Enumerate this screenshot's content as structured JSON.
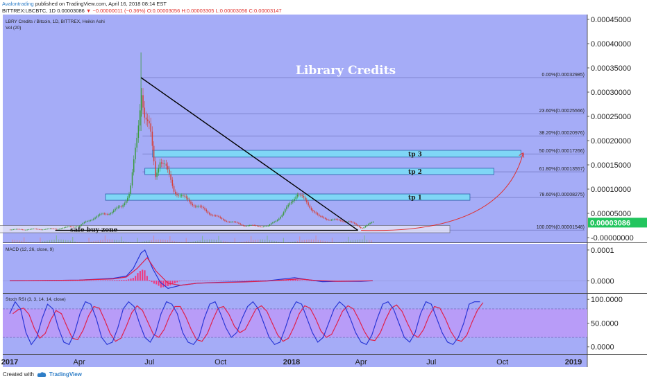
{
  "header": {
    "author": "Avalontrading",
    "published": "published on TradingView.com, April 16, 2018 08:14 EST",
    "symbol": "BITTREX:LBCBTC, 1D",
    "price": "0.00003086",
    "change": "−0.00000011 (−0.36%)",
    "ohlc": "O:0.00003056 H:0.00003305 L:0.00003056 C:0.00003147"
  },
  "footer": {
    "created_with": "Created with",
    "brand": "TradingView"
  },
  "colors": {
    "pane_bg": "#a5acf7",
    "candle_up": "#3a9a3c",
    "candle_down": "#d5403a",
    "macd_line": "#2433d6",
    "signal_line": "#e0204a",
    "hist": "#f2357b",
    "stoch_k": "#2a37d6",
    "stoch_d": "#e0204a",
    "stoch_band": "#b89cf8",
    "zone_fill": "#7fd6f6",
    "zone_border": "#2b5fa8",
    "curve": "#e03030",
    "price_badge": "#22c55e"
  },
  "chart_data": [
    {
      "type": "candlestick",
      "title": "LBRY Credits / Bitcoin, 1D, BITTREX, Heikin Ashi",
      "subtitle": "Vol (20)",
      "annotation": "Library Credits",
      "x_ticks": [
        "2017",
        "Apr",
        "Jul",
        "Oct",
        "2018",
        "Apr",
        "Jul",
        "Oct",
        "2019"
      ],
      "y_ticks": [
        "0.00045000",
        "0.00040000",
        "0.00035000",
        "0.00030000",
        "0.00025000",
        "0.00020000",
        "0.00015000",
        "0.00010000",
        "0.00005000",
        "-0.00000000"
      ],
      "y_ticks_values": [
        0.00045,
        0.0004,
        0.00035,
        0.0003,
        0.00025,
        0.0002,
        0.00015,
        0.0001,
        5e-05,
        0.0
      ],
      "ylim": [
        -1e-05,
        0.00046
      ],
      "last_price": "0.00003086",
      "price_path": {
        "dates": [
          "2017-01-01",
          "2017-02-01",
          "2017-03-01",
          "2017-04-01",
          "2017-04-20",
          "2017-05-10",
          "2017-05-25",
          "2017-06-05",
          "2017-06-15",
          "2017-06-20",
          "2017-06-24",
          "2017-07-01",
          "2017-07-08",
          "2017-07-14",
          "2017-07-20",
          "2017-08-01",
          "2017-08-15",
          "2017-09-01",
          "2017-10-01",
          "2017-11-01",
          "2017-12-01",
          "2017-12-20",
          "2018-01-07",
          "2018-01-20",
          "2018-02-05",
          "2018-03-01",
          "2018-03-15",
          "2018-04-01",
          "2018-04-16"
        ],
        "values": [
          1.65e-05,
          1.72e-05,
          1.8e-05,
          2.45e-05,
          4.2e-05,
          5.2e-05,
          6.3e-05,
          9.5e-05,
          0.00021,
          0.00031,
          0.00026,
          0.00022,
          0.000125,
          0.000165,
          0.00015,
          9.8e-05,
          8e-05,
          6.4e-05,
          3.8e-05,
          2.5e-05,
          2.3e-05,
          4.8e-05,
          9.2e-05,
          7.2e-05,
          4.2e-05,
          3.5e-05,
          3.4e-05,
          2e-05,
          3.15e-05
        ]
      },
      "fib_levels": [
        {
          "label": "0.00%(0.00032985)",
          "value": 0.00032985
        },
        {
          "label": "23.60%(0.00025566)",
          "value": 0.00025566
        },
        {
          "label": "38.20%(0.00020976)",
          "value": 0.00020976
        },
        {
          "label": "50.00%(0.00017266)",
          "value": 0.00017266
        },
        {
          "label": "61.80%(0.00013557)",
          "value": 0.00013557
        },
        {
          "label": "78.60%(0.00008275)",
          "value": 8.275e-05
        },
        {
          "label": "100.00%(0.00001548)",
          "value": 1.548e-05
        }
      ],
      "zones": [
        {
          "label": "tp 3",
          "start": "2017-07-05",
          "end": "2018-10-25",
          "low": 0.000166,
          "high": 0.00018
        },
        {
          "label": "tp 2",
          "start": "2017-06-25",
          "end": "2018-09-20",
          "low": 0.00013,
          "high": 0.000143
        },
        {
          "label": "tp 1",
          "start": "2017-05-05",
          "end": "2018-08-20",
          "low": 7.7e-05,
          "high": 9e-05
        },
        {
          "label": "safe buy zone",
          "start": "2016-12-15",
          "end": "2018-07-25",
          "low": 1e-05,
          "high": 2.5e-05
        }
      ],
      "trendline": {
        "start": [
          "2017-06-20",
          0.00033
        ],
        "end": [
          "2018-03-28",
          1.5e-05
        ]
      },
      "support_line": {
        "start": [
          "2017-03-01",
          1.5e-05
        ],
        "end": [
          "2018-03-28",
          1.5e-05
        ]
      },
      "target_curve": {
        "start": [
          "2018-04-01",
          1.5e-05
        ],
        "end": [
          "2018-10-28",
          0.000175
        ]
      }
    },
    {
      "type": "line",
      "title": "MACD (12, 26, close, 9)",
      "y_ticks": [
        "0.0001",
        "0.0000"
      ],
      "y_ticks_values": [
        0.0001,
        0.0
      ],
      "ylim": [
        -4e-05,
        0.00012
      ],
      "series": [
        {
          "key": "macd",
          "dates": [
            "2017-01-01",
            "2017-04-01",
            "2017-05-15",
            "2017-06-01",
            "2017-06-10",
            "2017-06-20",
            "2017-06-25",
            "2017-07-05",
            "2017-07-15",
            "2017-07-25",
            "2017-08-10",
            "2017-09-01",
            "2017-10-01",
            "2017-11-01",
            "2017-12-01",
            "2018-01-05",
            "2018-01-20",
            "2018-02-10",
            "2018-03-01",
            "2018-04-01",
            "2018-04-16"
          ],
          "values": [
            0.0,
            2e-06,
            8e-06,
            1.5e-05,
            4e-05,
            9e-05,
            0.0001,
            4e-05,
            -5e-06,
            -2.5e-05,
            -1.5e-05,
            -8e-06,
            -5e-06,
            -3e-06,
            0.0,
            1e-05,
            4e-06,
            -3e-06,
            -2e-06,
            -2e-06,
            0.0
          ]
        },
        {
          "key": "signal",
          "dates": [
            "2017-01-01",
            "2017-04-01",
            "2017-05-15",
            "2017-06-01",
            "2017-06-15",
            "2017-06-28",
            "2017-07-10",
            "2017-07-25",
            "2017-08-10",
            "2017-09-01",
            "2017-10-01",
            "2017-11-01",
            "2017-12-01",
            "2018-01-10",
            "2018-02-01",
            "2018-03-01",
            "2018-04-16"
          ],
          "values": [
            0.0,
            2e-06,
            6e-06,
            1.2e-05,
            4e-05,
            7.5e-05,
            3e-05,
            -8e-06,
            -1.5e-05,
            -8e-06,
            -6e-06,
            -4e-06,
            -1e-06,
            6e-06,
            1e-06,
            -2e-06,
            0.0
          ]
        }
      ]
    },
    {
      "type": "line",
      "title": "Stoch RSI (3, 3, 14, 14, close)",
      "y_ticks": [
        "100.0000",
        "50.0000",
        "0.0000"
      ],
      "y_ticks_values": [
        100,
        50,
        0
      ],
      "ylim": [
        -15,
        112
      ],
      "band": [
        20,
        80
      ],
      "start": "2017-01-01",
      "step_days": 7,
      "k_values": [
        70,
        95,
        80,
        30,
        5,
        20,
        60,
        90,
        80,
        40,
        10,
        5,
        30,
        70,
        95,
        90,
        60,
        20,
        5,
        10,
        40,
        80,
        95,
        85,
        50,
        20,
        10,
        30,
        70,
        95,
        90,
        70,
        30,
        10,
        5,
        20,
        60,
        90,
        95,
        70,
        40,
        20,
        30,
        60,
        85,
        95,
        80,
        50,
        20,
        5,
        10,
        40,
        75,
        95,
        90,
        60,
        30,
        10,
        20,
        50,
        80,
        95,
        85,
        60,
        30,
        10,
        5,
        25,
        60,
        90,
        95,
        80,
        50,
        20,
        10,
        30,
        70,
        95,
        90,
        60,
        30,
        10,
        5,
        20,
        50,
        90,
        95,
        95
      ],
      "d_offset": 4
    }
  ]
}
